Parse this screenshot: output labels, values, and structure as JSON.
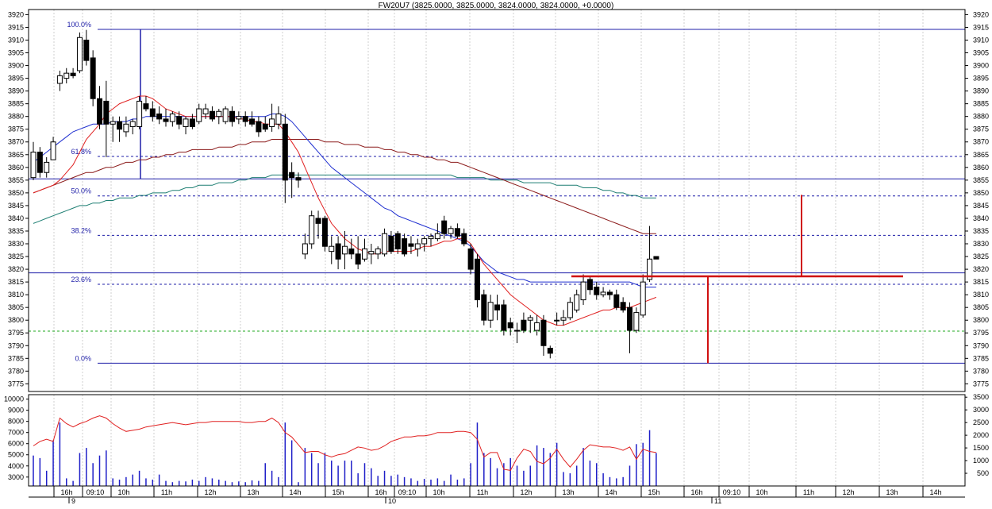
{
  "chart_data": {
    "type": "candlestick",
    "title": "FW20U7 (3825.0000, 3825.0000, 3824.0000, 3824.0000, +0.0000)",
    "price_axis": {
      "ylim": [
        3772,
        3922
      ],
      "ticks": [
        3775,
        3780,
        3785,
        3790,
        3795,
        3800,
        3805,
        3810,
        3815,
        3820,
        3825,
        3830,
        3835,
        3840,
        3845,
        3850,
        3855,
        3860,
        3865,
        3870,
        3875,
        3880,
        3885,
        3890,
        3895,
        3900,
        3905,
        3910,
        3915,
        3920
      ]
    },
    "volume_axis_left": {
      "ylim": [
        2200,
        10400
      ],
      "ticks": [
        3000,
        4000,
        5000,
        6000,
        7000,
        8000,
        9000,
        10000
      ]
    },
    "volume_axis_right": {
      "ylim": [
        0,
        3600
      ],
      "ticks": [
        500,
        1000,
        1500,
        2000,
        2500,
        3000,
        3500
      ]
    },
    "time_axis": {
      "ticks": [
        "16h",
        "09:10",
        "10h",
        "11h",
        "12h",
        "13h",
        "14h",
        "15h",
        "16h",
        "09:10",
        "10h",
        "11h",
        "12h",
        "13h",
        "14h",
        "15h",
        "16h",
        "09:10",
        "10h",
        "11h",
        "12h",
        "13h",
        "14h"
      ],
      "days": [
        "9",
        "10",
        "11"
      ]
    },
    "fibonacci": [
      {
        "label": "100.0%",
        "price": 3914.2
      },
      {
        "label": "61.8%",
        "price": 3864.3
      },
      {
        "label": "50.0%",
        "price": 3848.8
      },
      {
        "label": "38.2%",
        "price": 3833.3
      },
      {
        "label": "23.6%",
        "price": 3814.1
      },
      {
        "label": "0.0%",
        "price": 3783.1
      }
    ],
    "support_resistance": [
      3855.5,
      3818.6
    ],
    "green_level": 3795.7,
    "neckline": 3817.2,
    "measured_moves": [
      {
        "from": 3817.2,
        "to": 3783.1
      },
      {
        "from": 3817.2,
        "to": 3849.2
      }
    ],
    "candles": [
      {
        "o": 3856,
        "h": 3870,
        "l": 3855,
        "c": 3866
      },
      {
        "o": 3866,
        "h": 3868,
        "l": 3856,
        "c": 3858
      },
      {
        "o": 3858,
        "h": 3864,
        "l": 3856,
        "c": 3862
      },
      {
        "o": 3863,
        "h": 3872,
        "l": 3863,
        "c": 3870
      },
      {
        "o": 3893,
        "h": 3898,
        "l": 3890,
        "c": 3896
      },
      {
        "o": 3895,
        "h": 3899,
        "l": 3893,
        "c": 3897
      },
      {
        "o": 3897,
        "h": 3899,
        "l": 3895,
        "c": 3896
      },
      {
        "o": 3898,
        "h": 3913,
        "l": 3897,
        "c": 3911
      },
      {
        "o": 3910,
        "h": 3914,
        "l": 3900,
        "c": 3902
      },
      {
        "o": 3903,
        "h": 3906,
        "l": 3884,
        "c": 3887
      },
      {
        "o": 3887,
        "h": 3892,
        "l": 3875,
        "c": 3877
      },
      {
        "o": 3886,
        "h": 3894,
        "l": 3864,
        "c": 3877
      },
      {
        "o": 3877,
        "h": 3880,
        "l": 3870,
        "c": 3878
      },
      {
        "o": 3878,
        "h": 3880,
        "l": 3870,
        "c": 3875
      },
      {
        "o": 3874,
        "h": 3880,
        "l": 3872,
        "c": 3877
      },
      {
        "o": 3876,
        "h": 3879,
        "l": 3873,
        "c": 3878
      },
      {
        "o": 3876,
        "h": 3888,
        "l": 3875,
        "c": 3886
      },
      {
        "o": 3885,
        "h": 3888,
        "l": 3882,
        "c": 3883
      },
      {
        "o": 3883,
        "h": 3886,
        "l": 3878,
        "c": 3880
      },
      {
        "o": 3881,
        "h": 3884,
        "l": 3877,
        "c": 3879
      },
      {
        "o": 3879,
        "h": 3883,
        "l": 3876,
        "c": 3878
      },
      {
        "o": 3878,
        "h": 3882,
        "l": 3876,
        "c": 3881
      },
      {
        "o": 3880,
        "h": 3882,
        "l": 3875,
        "c": 3877
      },
      {
        "o": 3876,
        "h": 3880,
        "l": 3873,
        "c": 3879
      },
      {
        "o": 3879,
        "h": 3881,
        "l": 3875,
        "c": 3876
      },
      {
        "o": 3878,
        "h": 3885,
        "l": 3877,
        "c": 3883
      },
      {
        "o": 3881,
        "h": 3885,
        "l": 3879,
        "c": 3883
      },
      {
        "o": 3882,
        "h": 3884,
        "l": 3878,
        "c": 3879
      },
      {
        "o": 3880,
        "h": 3883,
        "l": 3877,
        "c": 3882
      },
      {
        "o": 3878,
        "h": 3884,
        "l": 3877,
        "c": 3883
      },
      {
        "o": 3882,
        "h": 3884,
        "l": 3876,
        "c": 3878
      },
      {
        "o": 3879,
        "h": 3882,
        "l": 3877,
        "c": 3880
      },
      {
        "o": 3880,
        "h": 3882,
        "l": 3876,
        "c": 3878
      },
      {
        "o": 3879,
        "h": 3882,
        "l": 3876,
        "c": 3877
      },
      {
        "o": 3878,
        "h": 3880,
        "l": 3872,
        "c": 3874
      },
      {
        "o": 3877,
        "h": 3880,
        "l": 3874,
        "c": 3875
      },
      {
        "o": 3876,
        "h": 3885,
        "l": 3874,
        "c": 3879
      },
      {
        "o": 3877,
        "h": 3884,
        "l": 3875,
        "c": 3881
      },
      {
        "o": 3877,
        "h": 3881,
        "l": 3846,
        "c": 3855
      },
      {
        "o": 3858,
        "h": 3862,
        "l": 3848,
        "c": 3856
      },
      {
        "o": 3856,
        "h": 3858,
        "l": 3852,
        "c": 3855
      },
      {
        "o": 3826,
        "h": 3834,
        "l": 3824,
        "c": 3830
      },
      {
        "o": 3830,
        "h": 3843,
        "l": 3828,
        "c": 3841
      },
      {
        "o": 3840,
        "h": 3843,
        "l": 3832,
        "c": 3838
      },
      {
        "o": 3840,
        "h": 3841,
        "l": 3827,
        "c": 3829
      },
      {
        "o": 3827,
        "h": 3833,
        "l": 3822,
        "c": 3829
      },
      {
        "o": 3830,
        "h": 3833,
        "l": 3820,
        "c": 3824
      },
      {
        "o": 3826,
        "h": 3835,
        "l": 3820,
        "c": 3829
      },
      {
        "o": 3828,
        "h": 3832,
        "l": 3824,
        "c": 3826
      },
      {
        "o": 3826,
        "h": 3833,
        "l": 3820,
        "c": 3822
      },
      {
        "o": 3824,
        "h": 3832,
        "l": 3823,
        "c": 3828
      },
      {
        "o": 3826,
        "h": 3830,
        "l": 3822,
        "c": 3827
      },
      {
        "o": 3826,
        "h": 3829,
        "l": 3824,
        "c": 3828
      },
      {
        "o": 3826,
        "h": 3836,
        "l": 3825,
        "c": 3834
      },
      {
        "o": 3833,
        "h": 3835,
        "l": 3826,
        "c": 3827
      },
      {
        "o": 3834,
        "h": 3835,
        "l": 3826,
        "c": 3828
      },
      {
        "o": 3832,
        "h": 3834,
        "l": 3825,
        "c": 3826
      },
      {
        "o": 3830,
        "h": 3833,
        "l": 3826,
        "c": 3829
      },
      {
        "o": 3828,
        "h": 3832,
        "l": 3825,
        "c": 3830
      },
      {
        "o": 3830,
        "h": 3833,
        "l": 3827,
        "c": 3832
      },
      {
        "o": 3832,
        "h": 3834,
        "l": 3829,
        "c": 3833
      },
      {
        "o": 3832,
        "h": 3838,
        "l": 3831,
        "c": 3834
      },
      {
        "o": 3839,
        "h": 3841,
        "l": 3832,
        "c": 3834
      },
      {
        "o": 3834,
        "h": 3837,
        "l": 3832,
        "c": 3836
      },
      {
        "o": 3836,
        "h": 3838,
        "l": 3832,
        "c": 3833
      },
      {
        "o": 3834,
        "h": 3836,
        "l": 3829,
        "c": 3830
      },
      {
        "o": 3828,
        "h": 3830,
        "l": 3818,
        "c": 3820
      },
      {
        "o": 3824,
        "h": 3826,
        "l": 3805,
        "c": 3808
      },
      {
        "o": 3810,
        "h": 3812,
        "l": 3798,
        "c": 3800
      },
      {
        "o": 3800,
        "h": 3810,
        "l": 3797,
        "c": 3807
      },
      {
        "o": 3806,
        "h": 3810,
        "l": 3800,
        "c": 3804
      },
      {
        "o": 3806,
        "h": 3808,
        "l": 3794,
        "c": 3796
      },
      {
        "o": 3799,
        "h": 3801,
        "l": 3794,
        "c": 3797
      },
      {
        "o": 3796,
        "h": 3799,
        "l": 3791,
        "c": 3796
      },
      {
        "o": 3800,
        "h": 3803,
        "l": 3795,
        "c": 3796
      },
      {
        "o": 3800,
        "h": 3802,
        "l": 3795,
        "c": 3801
      },
      {
        "o": 3796,
        "h": 3802,
        "l": 3794,
        "c": 3799
      },
      {
        "o": 3800,
        "h": 3802,
        "l": 3786,
        "c": 3790
      },
      {
        "o": 3789,
        "h": 3790,
        "l": 3785,
        "c": 3787
      },
      {
        "o": 3800,
        "h": 3803,
        "l": 3798,
        "c": 3800
      },
      {
        "o": 3800,
        "h": 3804,
        "l": 3798,
        "c": 3801
      },
      {
        "o": 3801,
        "h": 3809,
        "l": 3800,
        "c": 3807
      },
      {
        "o": 3804,
        "h": 3812,
        "l": 3803,
        "c": 3810
      },
      {
        "o": 3808,
        "h": 3818,
        "l": 3806,
        "c": 3815
      },
      {
        "o": 3816,
        "h": 3817,
        "l": 3810,
        "c": 3812
      },
      {
        "o": 3813,
        "h": 3815,
        "l": 3808,
        "c": 3810
      },
      {
        "o": 3810,
        "h": 3813,
        "l": 3809,
        "c": 3811
      },
      {
        "o": 3811,
        "h": 3812,
        "l": 3808,
        "c": 3810
      },
      {
        "o": 3810,
        "h": 3812,
        "l": 3804,
        "c": 3805
      },
      {
        "o": 3807,
        "h": 3809,
        "l": 3803,
        "c": 3804
      },
      {
        "o": 3805,
        "h": 3807,
        "l": 3787,
        "c": 3796
      },
      {
        "o": 3796,
        "h": 3805,
        "l": 3795,
        "c": 3803
      },
      {
        "o": 3802,
        "h": 3818,
        "l": 3801,
        "c": 3815
      },
      {
        "o": 3816,
        "h": 3837,
        "l": 3815,
        "c": 3824
      },
      {
        "o": 3825,
        "h": 3825,
        "l": 3824,
        "c": 3824
      }
    ],
    "volume": [
      1200,
      1100,
      600,
      1800,
      2500,
      300,
      200,
      1300,
      1500,
      900,
      1200,
      1400,
      300,
      250,
      350,
      450,
      600,
      300,
      250,
      450,
      200,
      150,
      200,
      180,
      250,
      200,
      350,
      300,
      250,
      200,
      150,
      180,
      150,
      220,
      200,
      900,
      600,
      350,
      2500,
      1800,
      150,
      1500,
      1300,
      900,
      1300,
      1000,
      800,
      1000,
      1000,
      500,
      900,
      700,
      400,
      600,
      400,
      450,
      350,
      300,
      200,
      280,
      250,
      300,
      200,
      450,
      250,
      300,
      900,
      2500,
      1300,
      1100,
      700,
      900,
      1100,
      800,
      600,
      800,
      1600,
      1500,
      1300,
      1700,
      550,
      500,
      800,
      1500,
      1000,
      900,
      500,
      350,
      300,
      350,
      800,
      1650,
      1700,
      2200,
      1300
    ],
    "ma_red": [
      3850,
      3851,
      3852,
      3853,
      3855,
      3858,
      3861,
      3866,
      3871,
      3874,
      3877,
      3881,
      3883,
      3885,
      3886,
      3887,
      3888,
      3888,
      3887,
      3885,
      3883,
      3882,
      3881,
      3880,
      3880,
      3880,
      3880,
      3880,
      3880,
      3880,
      3880,
      3879,
      3879,
      3878,
      3878,
      3877,
      3877,
      3877,
      3874,
      3870,
      3866,
      3860,
      3854,
      3848,
      3843,
      3838,
      3835,
      3832,
      3830,
      3828,
      3827,
      3826,
      3826,
      3827,
      3827,
      3827,
      3827,
      3827,
      3828,
      3829,
      3829,
      3830,
      3831,
      3831,
      3832,
      3832,
      3830,
      3826,
      3822,
      3819,
      3816,
      3813,
      3810,
      3808,
      3806,
      3804,
      3802,
      3800,
      3799,
      3798,
      3798,
      3799,
      3800,
      3801,
      3802,
      3803,
      3804,
      3804,
      3805,
      3805,
      3805,
      3806,
      3807,
      3808,
      3809
    ],
    "ma_blue": [
      3862,
      3864,
      3866,
      3868,
      3870,
      3872,
      3874,
      3875,
      3876,
      3877,
      3877,
      3877,
      3878,
      3878,
      3878,
      3879,
      3879,
      3880,
      3880,
      3880,
      3880,
      3880,
      3880,
      3880,
      3880,
      3880,
      3880,
      3880,
      3880,
      3880,
      3880,
      3880,
      3880,
      3880,
      3880,
      3880,
      3881,
      3881,
      3880,
      3878,
      3875,
      3872,
      3869,
      3866,
      3863,
      3860,
      3858,
      3856,
      3854,
      3852,
      3850,
      3848,
      3846,
      3844,
      3843,
      3841,
      3840,
      3839,
      3838,
      3837,
      3836,
      3835,
      3834,
      3833,
      3832,
      3831,
      3829,
      3826,
      3823,
      3821,
      3819,
      3818,
      3817,
      3816,
      3816,
      3815,
      3815,
      3815,
      3815,
      3815,
      3815,
      3815,
      3815,
      3815,
      3815,
      3815,
      3815,
      3815,
      3815,
      3815,
      3815,
      3814,
      3813,
      3813,
      3813
    ],
    "ma_darkred": [
      3850,
      3851,
      3852,
      3853,
      3854,
      3855,
      3856,
      3857,
      3858,
      3858,
      3859,
      3860,
      3860,
      3861,
      3862,
      3862,
      3863,
      3863,
      3864,
      3864,
      3865,
      3865,
      3866,
      3866,
      3867,
      3867,
      3867,
      3867,
      3868,
      3868,
      3868,
      3869,
      3869,
      3870,
      3870,
      3870,
      3871,
      3871,
      3871,
      3871,
      3871,
      3871,
      3871,
      3871,
      3870,
      3870,
      3870,
      3869,
      3869,
      3869,
      3868,
      3868,
      3868,
      3867,
      3867,
      3866,
      3866,
      3865,
      3865,
      3864,
      3864,
      3863,
      3863,
      3862,
      3862,
      3861,
      3860,
      3859,
      3858,
      3857,
      3856,
      3855,
      3854,
      3853,
      3852,
      3851,
      3850,
      3849,
      3848,
      3847,
      3846,
      3845,
      3844,
      3843,
      3842,
      3841,
      3840,
      3839,
      3838,
      3837,
      3836,
      3835,
      3834,
      3834,
      3834
    ],
    "ma_teal": [
      3838,
      3839,
      3840,
      3841,
      3842,
      3843,
      3844,
      3845,
      3845,
      3846,
      3846,
      3847,
      3847,
      3848,
      3848,
      3848,
      3849,
      3849,
      3850,
      3850,
      3850,
      3851,
      3851,
      3852,
      3852,
      3853,
      3853,
      3853,
      3854,
      3854,
      3854,
      3855,
      3855,
      3856,
      3856,
      3856,
      3857,
      3857,
      3857,
      3857,
      3857,
      3857,
      3857,
      3857,
      3857,
      3857,
      3857,
      3857,
      3857,
      3857,
      3857,
      3857,
      3857,
      3857,
      3857,
      3857,
      3857,
      3857,
      3857,
      3857,
      3857,
      3857,
      3857,
      3857,
      3856,
      3856,
      3856,
      3856,
      3856,
      3855,
      3855,
      3855,
      3855,
      3855,
      3854,
      3854,
      3854,
      3854,
      3854,
      3853,
      3853,
      3853,
      3853,
      3852,
      3852,
      3852,
      3851,
      3851,
      3850,
      3850,
      3849,
      3849,
      3848,
      3848,
      3848
    ],
    "volume_ma": [
      5800,
      6200,
      6400,
      6200,
      8300,
      7800,
      7500,
      7800,
      8000,
      8300,
      8500,
      8300,
      7800,
      7400,
      7100,
      7200,
      7300,
      7500,
      7600,
      7700,
      7800,
      7900,
      7800,
      7700,
      7800,
      7900,
      7900,
      8000,
      8000,
      8000,
      8000,
      8000,
      7900,
      7900,
      8000,
      8000,
      8300,
      7900,
      7000,
      6600,
      5900,
      5200,
      5300,
      5300,
      5000,
      4800,
      5000,
      5100,
      5400,
      5700,
      5600,
      5400,
      5500,
      5800,
      6200,
      6400,
      6600,
      6600,
      6700,
      6700,
      6800,
      7000,
      7000,
      7000,
      7100,
      7100,
      7000,
      6400,
      4800,
      5200,
      5200,
      3700,
      3600,
      4700,
      5500,
      5300,
      4400,
      4200,
      4700,
      5500,
      4600,
      3900,
      4600,
      5400,
      5900,
      5800,
      5700,
      5700,
      5600,
      5400,
      5700,
      4600,
      5500,
      5300,
      5200
    ]
  }
}
